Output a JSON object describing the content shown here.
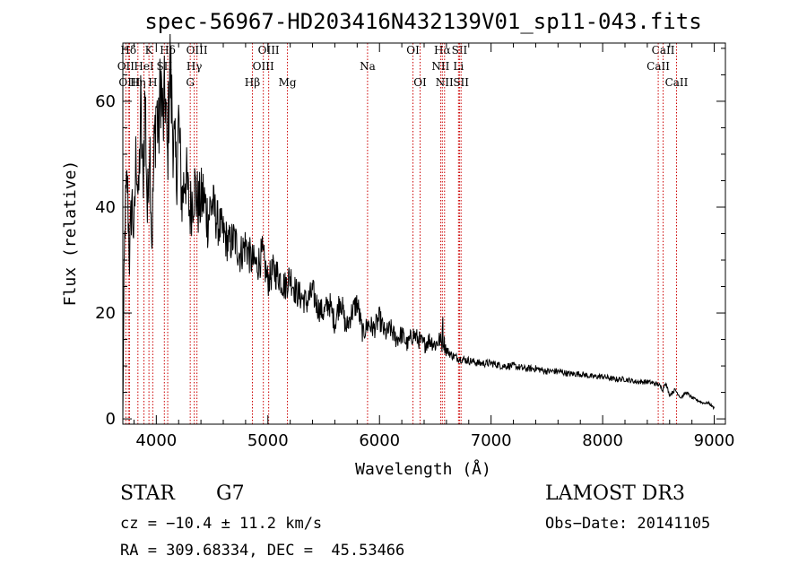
{
  "chart_data": {
    "type": "line",
    "title": "spec-56967-HD203416N432139V01_sp11-043.fits",
    "xlabel": "Wavelength (Å)",
    "ylabel": "Flux (relative)",
    "xlim": [
      3700,
      9100
    ],
    "ylim": [
      -1,
      71
    ],
    "x_ticks": [
      4000,
      5000,
      6000,
      7000,
      8000,
      9000
    ],
    "y_ticks": [
      0,
      20,
      40,
      60
    ],
    "series": [
      {
        "name": "flux",
        "color": "#000000",
        "x": [
          3700,
          3710,
          3720,
          3740,
          3760,
          3780,
          3800,
          3820,
          3840,
          3860,
          3880,
          3900,
          3920,
          3940,
          3960,
          3980,
          4000,
          4020,
          4040,
          4060,
          4080,
          4100,
          4120,
          4150,
          4180,
          4200,
          4230,
          4260,
          4300,
          4340,
          4380,
          4420,
          4460,
          4500,
          4550,
          4600,
          4650,
          4700,
          4750,
          4800,
          4850,
          4900,
          4950,
          5000,
          5050,
          5100,
          5150,
          5200,
          5250,
          5300,
          5350,
          5400,
          5450,
          5500,
          5550,
          5600,
          5650,
          5700,
          5750,
          5800,
          5850,
          5900,
          5950,
          6000,
          6050,
          6100,
          6150,
          6200,
          6250,
          6300,
          6350,
          6400,
          6450,
          6500,
          6540,
          6560,
          6565,
          6570,
          6600,
          6650,
          6700,
          6800,
          6900,
          7000,
          7100,
          7200,
          7300,
          7400,
          7500,
          7600,
          7700,
          7800,
          7900,
          8000,
          8100,
          8200,
          8300,
          8400,
          8500,
          8540,
          8560,
          8600,
          8650,
          8700,
          8750,
          8800,
          8850,
          8900,
          8950,
          9000
        ],
        "y": [
          0,
          25,
          38,
          45,
          30,
          42,
          34,
          52,
          40,
          58,
          44,
          62,
          38,
          55,
          33,
          50,
          60,
          53,
          65,
          55,
          62,
          48,
          68,
          54,
          46,
          56,
          41,
          47,
          39,
          44,
          40,
          42,
          38,
          41,
          37,
          35,
          33,
          34,
          31,
          33,
          30,
          29,
          31,
          26,
          28,
          27,
          25,
          27,
          24,
          23,
          22,
          24,
          21,
          20,
          22,
          18,
          23,
          17,
          20,
          22,
          16,
          18,
          17,
          19,
          16,
          17,
          15,
          16,
          14,
          16,
          15,
          14,
          15,
          14,
          15,
          14,
          20,
          15,
          13,
          12,
          11.5,
          11,
          10.5,
          10.5,
          10,
          10,
          9.5,
          9.5,
          9,
          9,
          8.5,
          8.5,
          8,
          8,
          7.5,
          7.5,
          7,
          7,
          6.5,
          5.5,
          7,
          4.5,
          5.5,
          4,
          5,
          4,
          3.5,
          3,
          3,
          2
        ]
      }
    ],
    "line_markers": [
      {
        "label": "Hδ",
        "wavelength": 3750,
        "row": 1
      },
      {
        "label": "K",
        "wavelength": 3934,
        "row": 1
      },
      {
        "label": "Hδ",
        "wavelength": 4102,
        "row": 1
      },
      {
        "label": "OIII",
        "wavelength": 4364,
        "row": 1
      },
      {
        "label": "OIII",
        "wavelength": 5007,
        "row": 1
      },
      {
        "label": "OI",
        "wavelength": 6300,
        "row": 1
      },
      {
        "label": "Hα",
        "wavelength": 6563,
        "row": 1
      },
      {
        "label": "SII",
        "wavelength": 6717,
        "row": 1
      },
      {
        "label": "CaII",
        "wavelength": 8542,
        "row": 1
      },
      {
        "label": "OII",
        "wavelength": 3727,
        "row": 2
      },
      {
        "label": "HeI",
        "wavelength": 3889,
        "row": 2
      },
      {
        "label": "SII",
        "wavelength": 4072,
        "row": 2
      },
      {
        "label": "Hγ",
        "wavelength": 4340,
        "row": 2
      },
      {
        "label": "OIII",
        "wavelength": 4959,
        "row": 2
      },
      {
        "label": "Na",
        "wavelength": 5893,
        "row": 2
      },
      {
        "label": "NII",
        "wavelength": 6548,
        "row": 2
      },
      {
        "label": "Li",
        "wavelength": 6708,
        "row": 2
      },
      {
        "label": "CaII",
        "wavelength": 8498,
        "row": 2
      },
      {
        "label": "OIII",
        "wavelength": 3760,
        "row": 3
      },
      {
        "label": "Hη",
        "wavelength": 3835,
        "row": 3
      },
      {
        "label": "H",
        "wavelength": 3968,
        "row": 3
      },
      {
        "label": "G",
        "wavelength": 4304,
        "row": 3
      },
      {
        "label": "Hβ",
        "wavelength": 4861,
        "row": 3
      },
      {
        "label": "Mg",
        "wavelength": 5175,
        "row": 3
      },
      {
        "label": "OI",
        "wavelength": 6364,
        "row": 3
      },
      {
        "label": "NII",
        "wavelength": 6583,
        "row": 3
      },
      {
        "label": "SII",
        "wavelength": 6731,
        "row": 3
      },
      {
        "label": "CaII",
        "wavelength": 8662,
        "row": 3
      }
    ],
    "marker_color": "#cc0000",
    "axis_color": "#000000"
  },
  "info": {
    "object_type": "STAR",
    "subclass": "G7",
    "survey": "LAMOST DR3",
    "cz": "cz = −10.4 ± 11.2 km/s",
    "obs_date": "Obs−Date: 20141105",
    "coords": "RA = 309.68334, DEC =  45.53466"
  }
}
